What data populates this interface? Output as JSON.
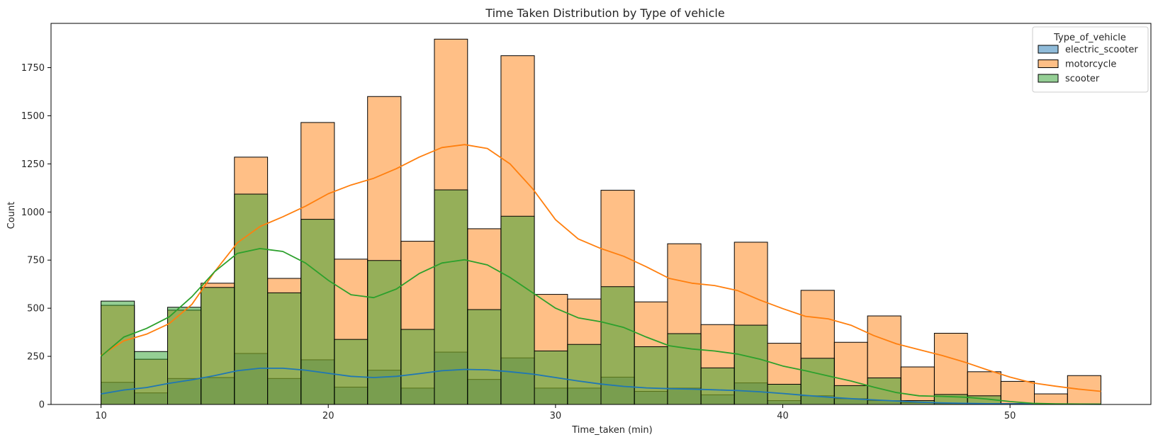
{
  "chart_data": {
    "type": "bar",
    "subtype": "overlapping histogram with KDE lines",
    "title": "Time Taken Distribution by Type of vehicle",
    "xlabel": "Time_taken (min)",
    "ylabel": "Count",
    "xlim": [
      7.8,
      56.2
    ],
    "ylim": [
      0,
      1980
    ],
    "x_ticks": [
      10,
      20,
      30,
      40,
      50
    ],
    "y_ticks": [
      0,
      250,
      500,
      750,
      1000,
      1250,
      1500,
      1750
    ],
    "bin_edges": [
      10,
      11.47,
      12.93,
      14.4,
      15.87,
      17.33,
      18.8,
      20.27,
      21.73,
      23.2,
      24.67,
      26.13,
      27.6,
      29.07,
      30.53,
      32,
      33.47,
      34.93,
      36.4,
      37.87,
      39.33,
      40.8,
      42.27,
      43.73,
      45.2,
      46.67,
      48.13,
      49.6,
      51.07,
      52.53,
      54
    ],
    "grid": false,
    "legend": {
      "title": "Type_of_vehicle",
      "position": "top-right",
      "entries": [
        "electric_scooter",
        "motorcycle",
        "scooter"
      ]
    },
    "series": [
      {
        "name": "electric_scooter",
        "color": "#1f77b4",
        "values": [
          115,
          60,
          135,
          140,
          265,
          135,
          232,
          90,
          178,
          85,
          272,
          130,
          242,
          85,
          85,
          142,
          68,
          85,
          50,
          112,
          20,
          45,
          30,
          20,
          10,
          5,
          5,
          3,
          2,
          2
        ],
        "kde": [
          [
            10,
            55
          ],
          [
            11,
            75
          ],
          [
            12,
            88
          ],
          [
            13,
            110
          ],
          [
            14,
            128
          ],
          [
            15,
            150
          ],
          [
            16,
            175
          ],
          [
            17,
            188
          ],
          [
            18,
            188
          ],
          [
            19,
            178
          ],
          [
            20,
            162
          ],
          [
            21,
            146
          ],
          [
            22,
            140
          ],
          [
            23,
            146
          ],
          [
            24,
            160
          ],
          [
            25,
            175
          ],
          [
            26,
            182
          ],
          [
            27,
            180
          ],
          [
            28,
            170
          ],
          [
            29,
            158
          ],
          [
            30,
            140
          ],
          [
            31,
            122
          ],
          [
            32,
            106
          ],
          [
            33,
            94
          ],
          [
            34,
            86
          ],
          [
            35,
            82
          ],
          [
            36,
            80
          ],
          [
            37,
            76
          ],
          [
            38,
            72
          ],
          [
            39,
            66
          ],
          [
            40,
            57
          ],
          [
            41,
            47
          ],
          [
            42,
            38
          ],
          [
            43,
            30
          ],
          [
            44,
            24
          ],
          [
            45,
            18
          ],
          [
            46,
            12
          ],
          [
            47,
            8
          ],
          [
            48,
            6
          ],
          [
            49,
            4
          ],
          [
            50,
            3
          ],
          [
            52,
            2
          ],
          [
            54,
            1
          ]
        ]
      },
      {
        "name": "motorcycle",
        "color": "#ff7f0e",
        "values": [
          515,
          235,
          490,
          630,
          1285,
          655,
          1465,
          755,
          1600,
          848,
          1898,
          913,
          1812,
          572,
          548,
          1113,
          533,
          835,
          415,
          843,
          318,
          593,
          323,
          460,
          195,
          370,
          170,
          120,
          55,
          150
        ],
        "kde": [
          [
            10,
            255
          ],
          [
            11,
            330
          ],
          [
            12,
            365
          ],
          [
            13,
            420
          ],
          [
            14,
            520
          ],
          [
            15,
            690
          ],
          [
            16,
            840
          ],
          [
            17,
            925
          ],
          [
            18,
            975
          ],
          [
            19,
            1030
          ],
          [
            20,
            1095
          ],
          [
            21,
            1140
          ],
          [
            22,
            1175
          ],
          [
            23,
            1225
          ],
          [
            24,
            1285
          ],
          [
            25,
            1335
          ],
          [
            26,
            1350
          ],
          [
            27,
            1330
          ],
          [
            28,
            1250
          ],
          [
            29,
            1120
          ],
          [
            30,
            960
          ],
          [
            31,
            860
          ],
          [
            32,
            810
          ],
          [
            33,
            770
          ],
          [
            34,
            715
          ],
          [
            35,
            655
          ],
          [
            36,
            630
          ],
          [
            37,
            618
          ],
          [
            38,
            592
          ],
          [
            39,
            542
          ],
          [
            40,
            498
          ],
          [
            41,
            458
          ],
          [
            42,
            445
          ],
          [
            43,
            412
          ],
          [
            44,
            358
          ],
          [
            45,
            315
          ],
          [
            46,
            285
          ],
          [
            47,
            255
          ],
          [
            48,
            220
          ],
          [
            49,
            180
          ],
          [
            50,
            142
          ],
          [
            51,
            112
          ],
          [
            52,
            95
          ],
          [
            53,
            80
          ],
          [
            54,
            68
          ]
        ]
      },
      {
        "name": "scooter",
        "color": "#2ca02c",
        "values": [
          537,
          275,
          505,
          608,
          1093,
          580,
          962,
          338,
          748,
          390,
          1115,
          493,
          978,
          278,
          312,
          612,
          300,
          368,
          190,
          412,
          105,
          240,
          98,
          138,
          20,
          52,
          45,
          5,
          2,
          1
        ],
        "kde": [
          [
            10,
            250
          ],
          [
            11,
            350
          ],
          [
            12,
            395
          ],
          [
            13,
            455
          ],
          [
            14,
            560
          ],
          [
            15,
            690
          ],
          [
            16,
            785
          ],
          [
            17,
            810
          ],
          [
            18,
            795
          ],
          [
            19,
            735
          ],
          [
            20,
            645
          ],
          [
            21,
            570
          ],
          [
            22,
            555
          ],
          [
            23,
            600
          ],
          [
            24,
            680
          ],
          [
            25,
            735
          ],
          [
            26,
            752
          ],
          [
            27,
            725
          ],
          [
            28,
            660
          ],
          [
            29,
            580
          ],
          [
            30,
            500
          ],
          [
            31,
            450
          ],
          [
            32,
            430
          ],
          [
            33,
            400
          ],
          [
            34,
            350
          ],
          [
            35,
            305
          ],
          [
            36,
            288
          ],
          [
            37,
            278
          ],
          [
            38,
            262
          ],
          [
            39,
            235
          ],
          [
            40,
            200
          ],
          [
            41,
            175
          ],
          [
            42,
            148
          ],
          [
            43,
            122
          ],
          [
            44,
            90
          ],
          [
            45,
            62
          ],
          [
            46,
            45
          ],
          [
            47,
            42
          ],
          [
            48,
            38
          ],
          [
            49,
            28
          ],
          [
            50,
            15
          ],
          [
            51,
            6
          ],
          [
            52,
            3
          ],
          [
            54,
            2
          ]
        ]
      }
    ]
  }
}
